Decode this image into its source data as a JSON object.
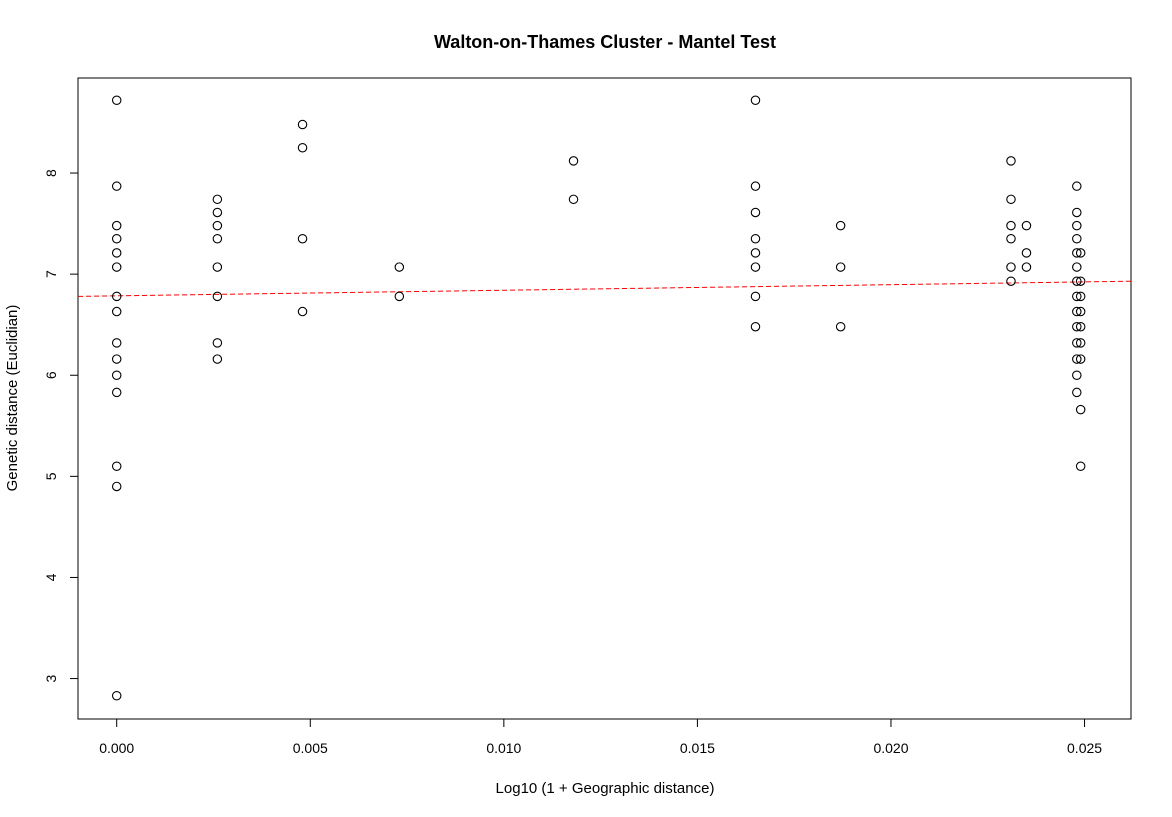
{
  "chart_data": {
    "type": "scatter",
    "title": "Walton-on-Thames Cluster - Mantel Test",
    "xlabel": "Log10 (1 + Geographic distance)",
    "ylabel": "Genetic distance (Euclidian)",
    "xlim": [
      -0.001,
      0.0262
    ],
    "ylim": [
      2.6,
      8.94
    ],
    "xticks": [
      "0.000",
      "0.005",
      "0.010",
      "0.015",
      "0.020",
      "0.025"
    ],
    "yticks": [
      "3",
      "4",
      "5",
      "6",
      "7",
      "8"
    ],
    "grid": false,
    "point_color": "#000000",
    "trend_line": {
      "x": [
        -0.001,
        0.0262
      ],
      "y": [
        6.78,
        6.93
      ],
      "color": "#ff0000",
      "style": "dashed"
    },
    "points": [
      [
        0.0,
        8.72
      ],
      [
        0.0,
        7.87
      ],
      [
        0.0,
        7.48
      ],
      [
        0.0,
        7.35
      ],
      [
        0.0,
        7.21
      ],
      [
        0.0,
        7.07
      ],
      [
        0.0,
        6.78
      ],
      [
        0.0,
        6.63
      ],
      [
        0.0,
        6.32
      ],
      [
        0.0,
        6.16
      ],
      [
        0.0,
        6.0
      ],
      [
        0.0,
        5.83
      ],
      [
        0.0,
        5.1
      ],
      [
        0.0,
        4.9
      ],
      [
        0.0,
        2.83
      ],
      [
        0.0026,
        7.74
      ],
      [
        0.0026,
        7.61
      ],
      [
        0.0026,
        7.48
      ],
      [
        0.0026,
        7.35
      ],
      [
        0.0026,
        7.07
      ],
      [
        0.0026,
        6.78
      ],
      [
        0.0026,
        6.32
      ],
      [
        0.0026,
        6.16
      ],
      [
        0.0048,
        8.48
      ],
      [
        0.0048,
        8.25
      ],
      [
        0.0048,
        7.35
      ],
      [
        0.0048,
        6.63
      ],
      [
        0.0073,
        7.07
      ],
      [
        0.0073,
        6.78
      ],
      [
        0.0118,
        8.12
      ],
      [
        0.0118,
        7.74
      ],
      [
        0.0165,
        8.72
      ],
      [
        0.0165,
        7.87
      ],
      [
        0.0165,
        7.61
      ],
      [
        0.0165,
        7.35
      ],
      [
        0.0165,
        7.21
      ],
      [
        0.0165,
        7.07
      ],
      [
        0.0165,
        6.78
      ],
      [
        0.0165,
        6.48
      ],
      [
        0.0187,
        7.48
      ],
      [
        0.0187,
        7.07
      ],
      [
        0.0187,
        6.48
      ],
      [
        0.0231,
        8.12
      ],
      [
        0.0231,
        7.74
      ],
      [
        0.0231,
        7.48
      ],
      [
        0.0231,
        7.35
      ],
      [
        0.0231,
        7.07
      ],
      [
        0.0231,
        6.93
      ],
      [
        0.0235,
        7.48
      ],
      [
        0.0235,
        7.21
      ],
      [
        0.0235,
        7.07
      ],
      [
        0.0248,
        7.87
      ],
      [
        0.0248,
        7.61
      ],
      [
        0.0248,
        7.48
      ],
      [
        0.0248,
        7.35
      ],
      [
        0.0248,
        7.21
      ],
      [
        0.0248,
        7.07
      ],
      [
        0.0248,
        6.93
      ],
      [
        0.0248,
        6.78
      ],
      [
        0.0248,
        6.63
      ],
      [
        0.0248,
        6.48
      ],
      [
        0.0248,
        6.32
      ],
      [
        0.0248,
        6.16
      ],
      [
        0.0248,
        6.0
      ],
      [
        0.0248,
        5.83
      ],
      [
        0.0249,
        7.21
      ],
      [
        0.0249,
        6.93
      ],
      [
        0.0249,
        6.78
      ],
      [
        0.0249,
        6.63
      ],
      [
        0.0249,
        6.48
      ],
      [
        0.0249,
        6.32
      ],
      [
        0.0249,
        6.16
      ],
      [
        0.0249,
        5.66
      ],
      [
        0.0249,
        5.1
      ]
    ]
  }
}
